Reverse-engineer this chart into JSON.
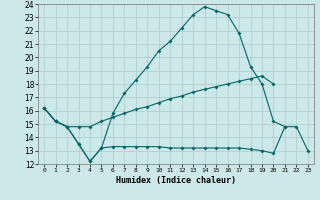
{
  "xlabel": "Humidex (Indice chaleur)",
  "bg_color": "#cce8e8",
  "grid_color": "#aacccc",
  "line_color": "#006666",
  "xlim": [
    -0.5,
    23.5
  ],
  "ylim": [
    12,
    24
  ],
  "xticks": [
    0,
    1,
    2,
    3,
    4,
    5,
    6,
    7,
    8,
    9,
    10,
    11,
    12,
    13,
    14,
    15,
    16,
    17,
    18,
    19,
    20,
    21,
    22,
    23
  ],
  "yticks": [
    12,
    13,
    14,
    15,
    16,
    17,
    18,
    19,
    20,
    21,
    22,
    23,
    24
  ],
  "line1_x": [
    0,
    1,
    2,
    3,
    4,
    5,
    6,
    7,
    8,
    9,
    10,
    11,
    12,
    13,
    14,
    15,
    16,
    17,
    18,
    19,
    20,
    21
  ],
  "line1_y": [
    16.2,
    15.2,
    14.8,
    13.5,
    12.2,
    13.2,
    15.8,
    17.3,
    18.3,
    19.3,
    20.5,
    21.2,
    22.2,
    23.2,
    23.8,
    23.5,
    23.2,
    21.8,
    19.3,
    18.0,
    15.2,
    14.8
  ],
  "line2_x": [
    0,
    1,
    2,
    3,
    4,
    5,
    6,
    7,
    8,
    9,
    10,
    11,
    12,
    13,
    14,
    15,
    16,
    17,
    18,
    19,
    20
  ],
  "line2_y": [
    16.2,
    15.2,
    14.8,
    14.8,
    14.8,
    15.2,
    15.5,
    15.8,
    16.1,
    16.3,
    16.6,
    16.9,
    17.1,
    17.4,
    17.6,
    17.8,
    18.0,
    18.2,
    18.4,
    18.6,
    18.0
  ],
  "line3_x": [
    0,
    1,
    2,
    3,
    4,
    5,
    6,
    7,
    8,
    9,
    10,
    11,
    12,
    13,
    14,
    15,
    16,
    17,
    18,
    19,
    20,
    21,
    22,
    23
  ],
  "line3_y": [
    16.2,
    15.2,
    14.8,
    13.5,
    12.2,
    13.2,
    13.3,
    13.3,
    13.3,
    13.3,
    13.3,
    13.2,
    13.2,
    13.2,
    13.2,
    13.2,
    13.2,
    13.2,
    13.1,
    13.0,
    12.8,
    14.8,
    14.8,
    13.0
  ]
}
